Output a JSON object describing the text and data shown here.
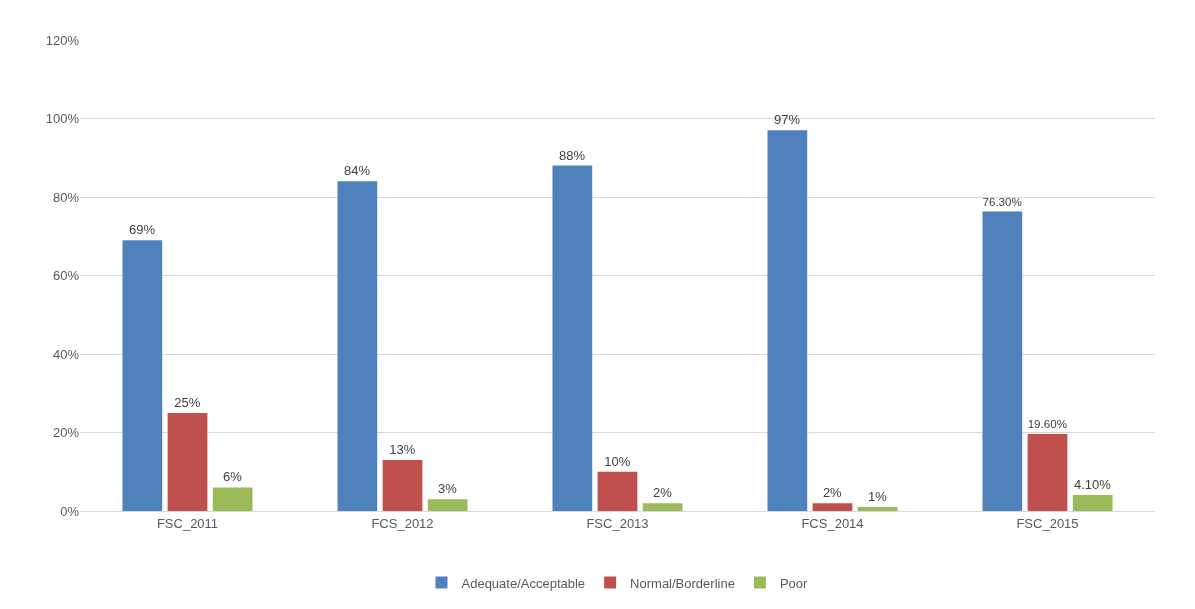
{
  "chart_data": {
    "type": "bar",
    "categories": [
      "FSC_2011",
      "FCS_2012",
      "FSC_2013",
      "FCS_2014",
      "FSC_2015"
    ],
    "series": [
      {
        "name": "Adequate/Acceptable",
        "color": "#4f81bd",
        "values": [
          69,
          84,
          88,
          97,
          76.3
        ],
        "value_labels": [
          "69%",
          "84%",
          "88%",
          "97%",
          "76.30%"
        ]
      },
      {
        "name": "Normal/Borderline",
        "color": "#c0504d",
        "values": [
          25,
          13,
          10,
          2,
          19.6
        ],
        "value_labels": [
          "25%",
          "13%",
          "10%",
          "2%",
          "19.60%"
        ]
      },
      {
        "name": "Poor",
        "color": "#9bbb59",
        "values": [
          6,
          3,
          2,
          1,
          4.1
        ],
        "value_labels": [
          "6%",
          "3%",
          "2%",
          "1%",
          "4.10%"
        ]
      }
    ],
    "ylim": [
      0,
      120
    ],
    "yticks": [
      {
        "value": 0,
        "label": "0%"
      },
      {
        "value": 20,
        "label": "20%"
      },
      {
        "value": 40,
        "label": "40%"
      },
      {
        "value": 60,
        "label": "60%"
      },
      {
        "value": 80,
        "label": "80%"
      },
      {
        "value": 100,
        "label": "100%"
      },
      {
        "value": 120,
        "label": "120%"
      }
    ],
    "grid": "y",
    "legend": "bottom"
  }
}
